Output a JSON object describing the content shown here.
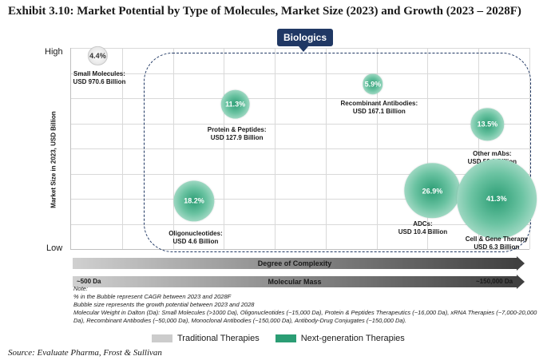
{
  "chart_data": {
    "type": "bubble",
    "title": "Exhibit 3.10: Market Potential by Type of Molecules, Market Size (2023) and Growth (2023 – 2028F)",
    "ylabel": "Market Size in 2023, USD Billion",
    "y_high_label": "High",
    "y_low_label": "Low",
    "x_axis_label": "Degree of Complexity",
    "mass_axis_label": "Molecular Mass",
    "mass_min_label": "~500 Da",
    "mass_max_label": "~150,000 Da",
    "group_label": "Biologics",
    "points": [
      {
        "name_line1": "Small Molecules:",
        "name_line2": "USD 970.6 Billion",
        "cagr": "4.4%",
        "category": "Traditional Therapies",
        "complexity": 0.06,
        "market_level": 0.96,
        "growth": 4.4
      },
      {
        "name_line1": "Protein & Peptides:",
        "name_line2": "USD 127.9 Billion",
        "cagr": "11.3%",
        "category": "Next-generation Therapies",
        "complexity": 0.36,
        "market_level": 0.72,
        "growth": 11.3
      },
      {
        "name_line1": "Recombinant Antibodies:",
        "name_line2": "USD 167.1 Billion",
        "cagr": "5.9%",
        "category": "Next-generation Therapies",
        "complexity": 0.66,
        "market_level": 0.82,
        "growth": 5.9
      },
      {
        "name_line1": "Other mAbs:",
        "name_line2": "USD 50.2 Billion",
        "cagr": "13.5%",
        "category": "Next-generation Therapies",
        "complexity": 0.91,
        "market_level": 0.62,
        "growth": 13.5
      },
      {
        "name_line1": "Oligonucleotides:",
        "name_line2": "USD 4.6 Billion",
        "cagr": "18.2%",
        "category": "Next-generation Therapies",
        "complexity": 0.27,
        "market_level": 0.24,
        "growth": 18.2
      },
      {
        "name_line1": "ADCs:",
        "name_line2": "USD 10.4 Billion",
        "cagr": "26.9%",
        "category": "Next-generation Therapies",
        "complexity": 0.79,
        "market_level": 0.29,
        "growth": 26.9
      },
      {
        "name_line1": "Cell & Gene Therapy",
        "name_line2": "USD 6.3 Billion",
        "cagr": "41.3%",
        "category": "Next-generation Therapies",
        "complexity": 0.93,
        "market_level": 0.25,
        "growth": 41.3
      }
    ],
    "legend": [
      {
        "label": "Traditional Therapies",
        "color": "#cccccc"
      },
      {
        "label": "Next-generation Therapies",
        "color": "#2b9d74"
      }
    ],
    "notes": [
      "Note:",
      "% in the Bubble represent CAGR between 2023 and 2028F",
      "Bubble size represents the growth potential between 2023 and 2028",
      "Molecular Weight in Dalton (Da): Small Molecules (>1000 Da), Oligonucleotides (~15,000 Da), Protein & Peptides Therapeutics (~16,000 Da), xRNA Therapies (~7,000-20,000 Da), Recombinant Antibodies (~50,000 Da), Monoclonal Antibodies (~150,000 Da), Antibody-Drug Conjugates (~150,000 Da)."
    ],
    "source": "Source: Evaluate Pharma, Frost & Sullivan"
  }
}
